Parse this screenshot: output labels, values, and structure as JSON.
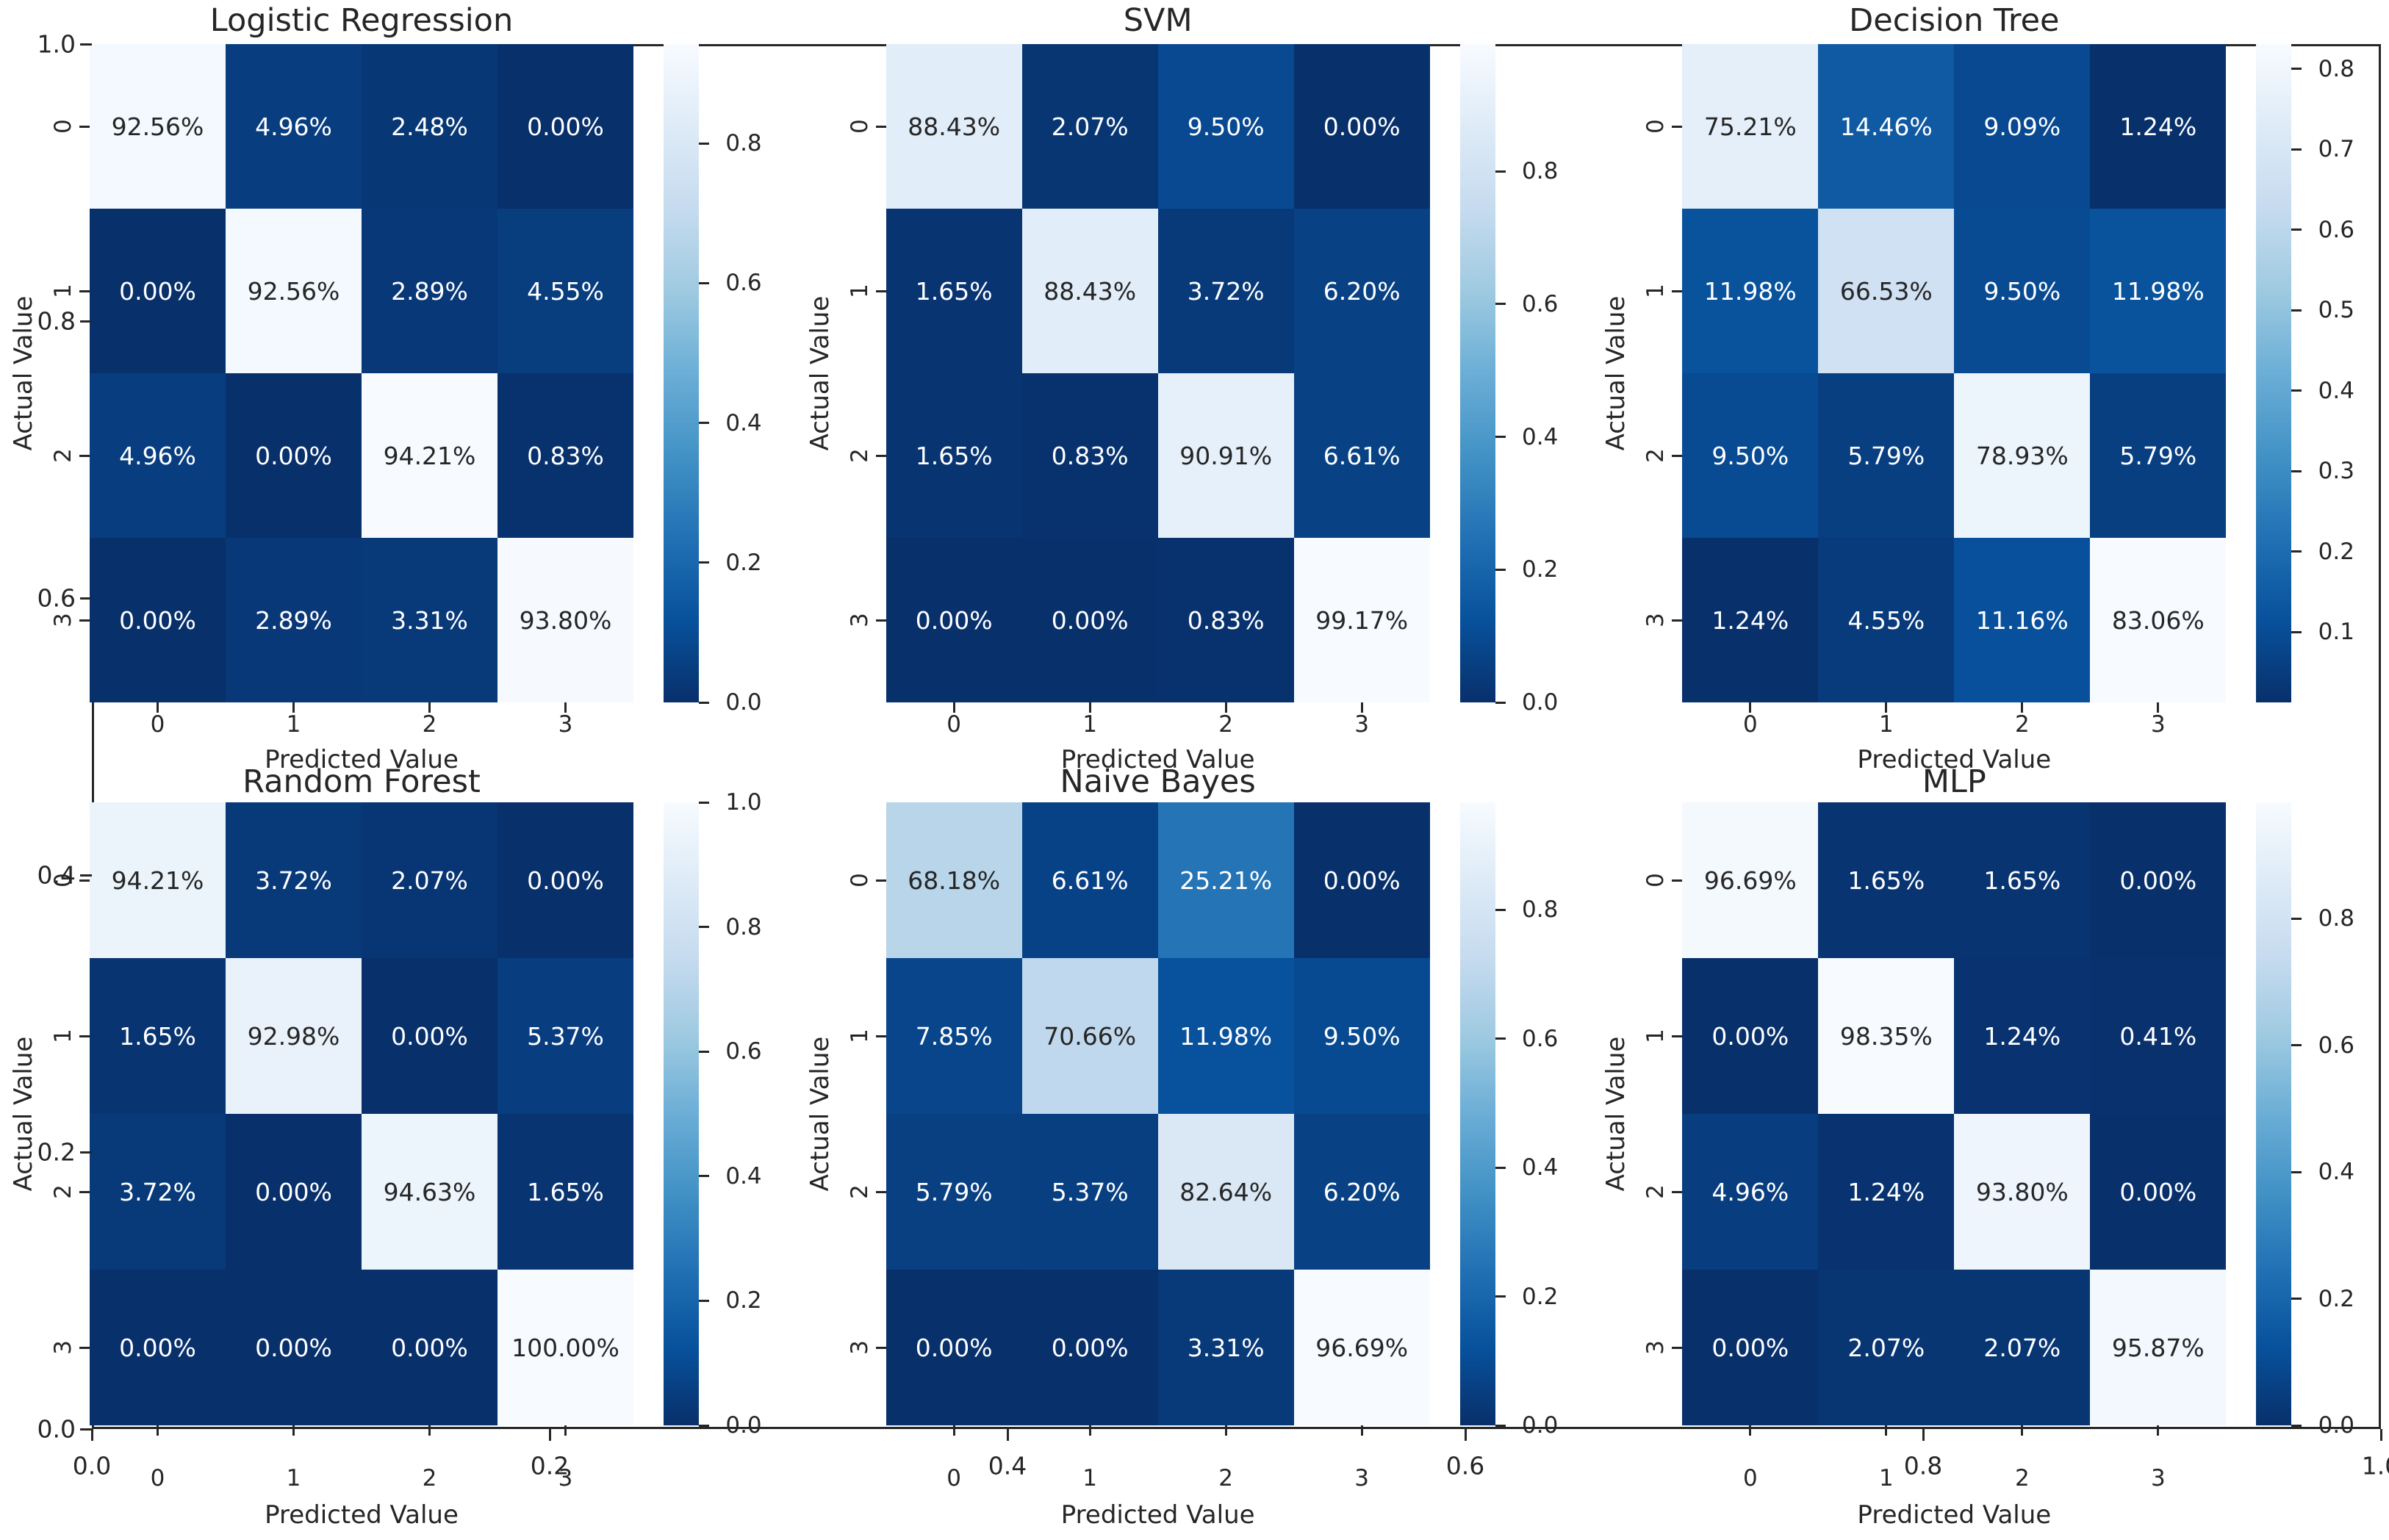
{
  "figure": {
    "background": "#ffffff",
    "text_color": "#262626",
    "annotation_text_dark": "#262626",
    "annotation_text_light": "#ffffff",
    "colormap_name": "Blues_r",
    "colormap_anchors": [
      "#f7fbff",
      "#deebf7",
      "#c6dbef",
      "#9ecae1",
      "#6baed6",
      "#4292c6",
      "#2171b5",
      "#08519c",
      "#08306b"
    ]
  },
  "outer_axes": {
    "y_tick_labels": [
      "1.0",
      "0.8",
      "0.6",
      "0.4",
      "0.2",
      "0.0"
    ],
    "x_tick_labels": [
      "0.0",
      "0.2",
      "0.4",
      "0.6",
      "0.8",
      "1.0"
    ]
  },
  "chart_data": [
    {
      "type": "heatmap",
      "title": "Logistic Regression",
      "xlabel": "Predicted Value",
      "ylabel": "Actual Value",
      "x_categories": [
        "0",
        "1",
        "2",
        "3"
      ],
      "y_categories": [
        "0",
        "1",
        "2",
        "3"
      ],
      "values_percent": [
        [
          92.56,
          4.96,
          2.48,
          0.0
        ],
        [
          0.0,
          92.56,
          2.89,
          4.55
        ],
        [
          4.96,
          0.0,
          94.21,
          0.83
        ],
        [
          0.0,
          2.89,
          3.31,
          93.8
        ]
      ],
      "labels": [
        [
          "92.56%",
          "4.96%",
          "2.48%",
          "0.00%"
        ],
        [
          "0.00%",
          "92.56%",
          "2.89%",
          "4.55%"
        ],
        [
          "4.96%",
          "0.00%",
          "94.21%",
          "0.83%"
        ],
        [
          "0.00%",
          "2.89%",
          "3.31%",
          "93.80%"
        ]
      ],
      "colorbar_ticks": [
        "0.8",
        "0.6",
        "0.4",
        "0.2",
        "0.0"
      ]
    },
    {
      "type": "heatmap",
      "title": "SVM",
      "xlabel": "Predicted Value",
      "ylabel": "Actual Value",
      "x_categories": [
        "0",
        "1",
        "2",
        "3"
      ],
      "y_categories": [
        "0",
        "1",
        "2",
        "3"
      ],
      "values_percent": [
        [
          88.43,
          2.07,
          9.5,
          0.0
        ],
        [
          1.65,
          88.43,
          3.72,
          6.2
        ],
        [
          1.65,
          0.83,
          90.91,
          6.61
        ],
        [
          0.0,
          0.0,
          0.83,
          99.17
        ]
      ],
      "labels": [
        [
          "88.43%",
          "2.07%",
          "9.50%",
          "0.00%"
        ],
        [
          "1.65%",
          "88.43%",
          "3.72%",
          "6.20%"
        ],
        [
          "1.65%",
          "0.83%",
          "90.91%",
          "6.61%"
        ],
        [
          "0.00%",
          "0.00%",
          "0.83%",
          "99.17%"
        ]
      ],
      "colorbar_ticks": [
        "0.8",
        "0.6",
        "0.4",
        "0.2",
        "0.0"
      ]
    },
    {
      "type": "heatmap",
      "title": "Decision Tree",
      "xlabel": "Predicted Value",
      "ylabel": "Actual Value",
      "x_categories": [
        "0",
        "1",
        "2",
        "3"
      ],
      "y_categories": [
        "0",
        "1",
        "2",
        "3"
      ],
      "values_percent": [
        [
          75.21,
          14.46,
          9.09,
          1.24
        ],
        [
          11.98,
          66.53,
          9.5,
          11.98
        ],
        [
          9.5,
          5.79,
          78.93,
          5.79
        ],
        [
          1.24,
          4.55,
          11.16,
          83.06
        ]
      ],
      "labels": [
        [
          "75.21%",
          "14.46%",
          "9.09%",
          "1.24%"
        ],
        [
          "11.98%",
          "66.53%",
          "9.50%",
          "11.98%"
        ],
        [
          "9.50%",
          "5.79%",
          "78.93%",
          "5.79%"
        ],
        [
          "1.24%",
          "4.55%",
          "11.16%",
          "83.06%"
        ]
      ],
      "colorbar_ticks": [
        "0.8",
        "0.7",
        "0.6",
        "0.5",
        "0.4",
        "0.3",
        "0.2",
        "0.1"
      ]
    },
    {
      "type": "heatmap",
      "title": "Random Forest",
      "xlabel": "Predicted Value",
      "ylabel": "Actual Value",
      "x_categories": [
        "0",
        "1",
        "2",
        "3"
      ],
      "y_categories": [
        "0",
        "1",
        "2",
        "3"
      ],
      "values_percent": [
        [
          94.21,
          3.72,
          2.07,
          0.0
        ],
        [
          1.65,
          92.98,
          0.0,
          5.37
        ],
        [
          3.72,
          0.0,
          94.63,
          1.65
        ],
        [
          0.0,
          0.0,
          0.0,
          100.0
        ]
      ],
      "labels": [
        [
          "94.21%",
          "3.72%",
          "2.07%",
          "0.00%"
        ],
        [
          "1.65%",
          "92.98%",
          "0.00%",
          "5.37%"
        ],
        [
          "3.72%",
          "0.00%",
          "94.63%",
          "1.65%"
        ],
        [
          "0.00%",
          "0.00%",
          "0.00%",
          "100.00%"
        ]
      ],
      "colorbar_ticks": [
        "1.0",
        "0.8",
        "0.6",
        "0.4",
        "0.2",
        "0.0"
      ]
    },
    {
      "type": "heatmap",
      "title": "Naive Bayes",
      "xlabel": "Predicted Value",
      "ylabel": "Actual Value",
      "x_categories": [
        "0",
        "1",
        "2",
        "3"
      ],
      "y_categories": [
        "0",
        "1",
        "2",
        "3"
      ],
      "values_percent": [
        [
          68.18,
          6.61,
          25.21,
          0.0
        ],
        [
          7.85,
          70.66,
          11.98,
          9.5
        ],
        [
          5.79,
          5.37,
          82.64,
          6.2
        ],
        [
          0.0,
          0.0,
          3.31,
          96.69
        ]
      ],
      "labels": [
        [
          "68.18%",
          "6.61%",
          "25.21%",
          "0.00%"
        ],
        [
          "7.85%",
          "70.66%",
          "11.98%",
          "9.50%"
        ],
        [
          "5.79%",
          "5.37%",
          "82.64%",
          "6.20%"
        ],
        [
          "0.00%",
          "0.00%",
          "3.31%",
          "96.69%"
        ]
      ],
      "colorbar_ticks": [
        "0.8",
        "0.6",
        "0.4",
        "0.2",
        "0.0"
      ]
    },
    {
      "type": "heatmap",
      "title": "MLP",
      "xlabel": "Predicted Value",
      "ylabel": "Actual Value",
      "x_categories": [
        "0",
        "1",
        "2",
        "3"
      ],
      "y_categories": [
        "0",
        "1",
        "2",
        "3"
      ],
      "values_percent": [
        [
          96.69,
          1.65,
          1.65,
          0.0
        ],
        [
          0.0,
          98.35,
          1.24,
          0.41
        ],
        [
          4.96,
          1.24,
          93.8,
          0.0
        ],
        [
          0.0,
          2.07,
          2.07,
          95.87
        ]
      ],
      "labels": [
        [
          "96.69%",
          "1.65%",
          "1.65%",
          "0.00%"
        ],
        [
          "0.00%",
          "98.35%",
          "1.24%",
          "0.41%"
        ],
        [
          "4.96%",
          "1.24%",
          "93.80%",
          "0.00%"
        ],
        [
          "0.00%",
          "2.07%",
          "2.07%",
          "95.87%"
        ]
      ],
      "colorbar_ticks": [
        "0.8",
        "0.6",
        "0.4",
        "0.2",
        "0.0"
      ]
    }
  ]
}
